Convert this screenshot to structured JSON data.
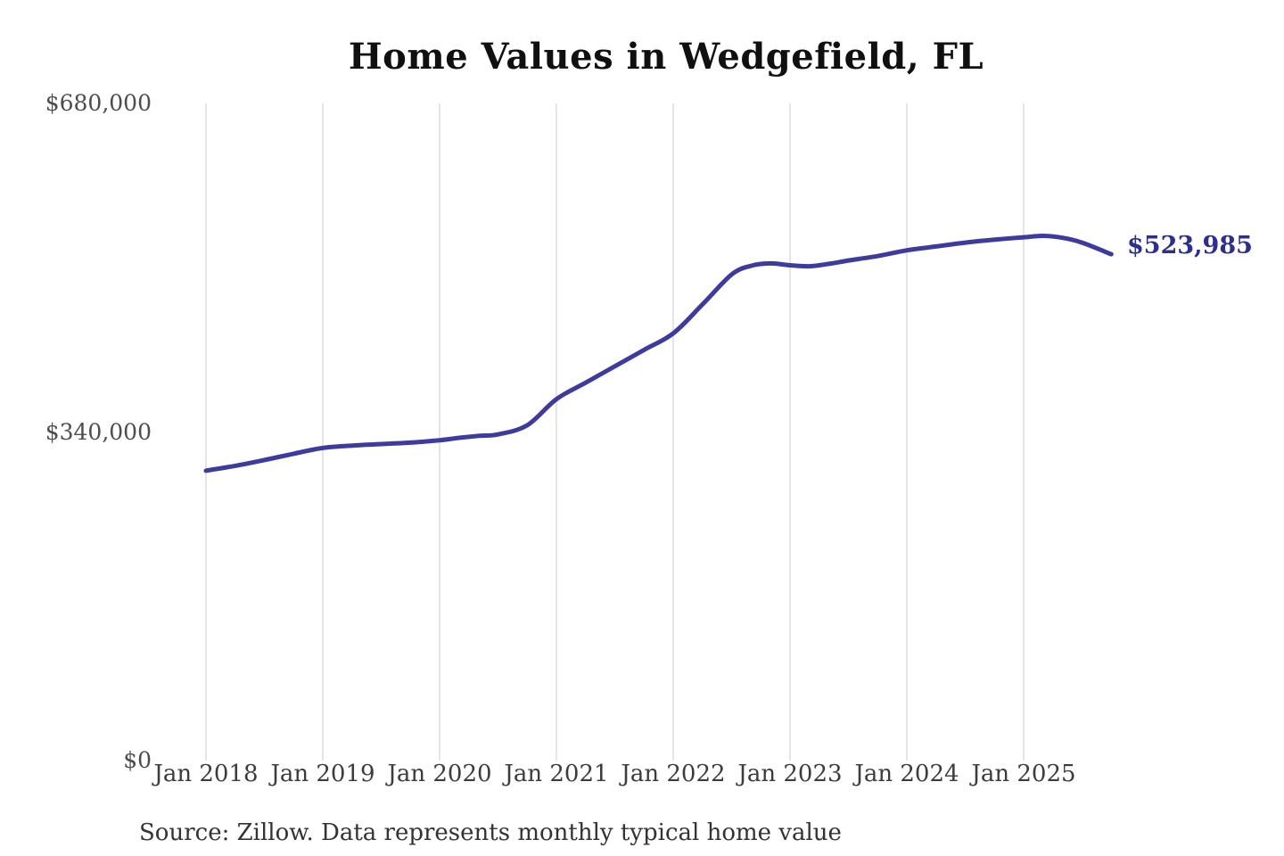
{
  "title": "Home Values in Wedgefield, FL",
  "source_note": "Source: Zillow. Data represents monthly typical home value",
  "colors": {
    "line": "#3d3b9e",
    "latest_label_text": "#2d2f8c",
    "gridline": "#cbcbcb",
    "title_text": "#101010",
    "x_axis_text": "#3c3c3c",
    "y_axis_text": "#4d4d4d",
    "source_text": "#333333",
    "background": "#ffffff"
  },
  "chart_data": {
    "type": "line",
    "title": "Home Values in Wedgefield, FL",
    "xlabel": "",
    "ylabel": "",
    "ylim": [
      0,
      680000
    ],
    "grid": "vertical-only",
    "legend": "none",
    "x_unit": "months since Jan 2018",
    "y_ticks": [
      {
        "value": 0,
        "label": "$0"
      },
      {
        "value": 340000,
        "label": "$340,000"
      },
      {
        "value": 680000,
        "label": "$680,000"
      }
    ],
    "x_ticks": [
      {
        "month": 0,
        "label": "Jan 2018"
      },
      {
        "month": 12,
        "label": "Jan 2019"
      },
      {
        "month": 24,
        "label": "Jan 2020"
      },
      {
        "month": 36,
        "label": "Jan 2021"
      },
      {
        "month": 48,
        "label": "Jan 2022"
      },
      {
        "month": 60,
        "label": "Jan 2023"
      },
      {
        "month": 72,
        "label": "Jan 2024"
      },
      {
        "month": 84,
        "label": "Jan 2025"
      }
    ],
    "latest_value": 523985,
    "latest_label": "$523,985",
    "series": [
      {
        "name": "Monthly typical home value (USD)",
        "points": [
          [
            0,
            300000
          ],
          [
            3,
            305000
          ],
          [
            6,
            311000
          ],
          [
            9,
            317500
          ],
          [
            12,
            323500
          ],
          [
            15,
            326000
          ],
          [
            18,
            327500
          ],
          [
            21,
            329000
          ],
          [
            24,
            331500
          ],
          [
            26,
            334000
          ],
          [
            28,
            336000
          ],
          [
            30,
            337500
          ],
          [
            33,
            347000
          ],
          [
            36,
            374000
          ],
          [
            39,
            391000
          ],
          [
            42,
            408000
          ],
          [
            45,
            425000
          ],
          [
            48,
            442000
          ],
          [
            51,
            472000
          ],
          [
            54,
            503000
          ],
          [
            56,
            512000
          ],
          [
            58,
            514500
          ],
          [
            60,
            512500
          ],
          [
            62,
            511500
          ],
          [
            64,
            514000
          ],
          [
            66,
            517500
          ],
          [
            69,
            522000
          ],
          [
            72,
            528000
          ],
          [
            75,
            532000
          ],
          [
            78,
            536000
          ],
          [
            81,
            539000
          ],
          [
            84,
            541500
          ],
          [
            86,
            543000
          ],
          [
            88,
            541000
          ],
          [
            90,
            536000
          ],
          [
            93,
            523985
          ]
        ]
      }
    ]
  }
}
